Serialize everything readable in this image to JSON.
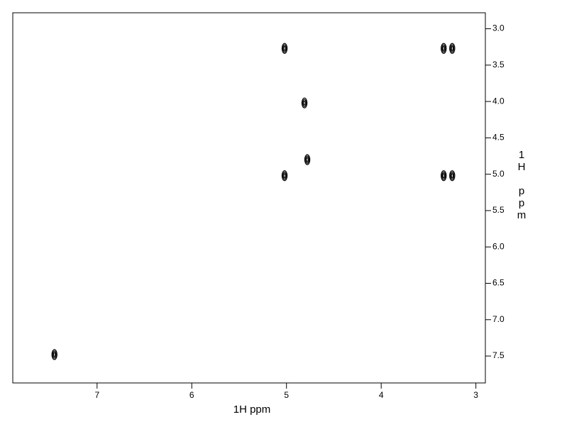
{
  "chart_data": {
    "type": "scatter",
    "x_label": "1H ppm",
    "y_label": "1H ppm",
    "xlim": [
      7.89,
      2.9
    ],
    "ylim": [
      2.78,
      7.87
    ],
    "xticks": [
      7,
      6,
      5,
      4,
      3
    ],
    "yticks": [
      {
        "value": 3,
        "label": "3.0"
      },
      {
        "value": 3.5,
        "label": "3.5"
      },
      {
        "value": 4,
        "label": "4.0"
      },
      {
        "value": 4.5,
        "label": "4.5"
      },
      {
        "value": 5,
        "label": "5.0"
      },
      {
        "value": 5.5,
        "label": "5.5"
      },
      {
        "value": 6,
        "label": "6.0"
      },
      {
        "value": 6.5,
        "label": "6.5"
      },
      {
        "value": 7,
        "label": "7.0"
      },
      {
        "value": 7.5,
        "label": "7.5"
      }
    ],
    "series": [
      {
        "color": "#000000",
        "x": [
          7.45,
          5.02,
          5.02,
          4.78,
          4.81,
          3.34,
          3.25,
          3.34,
          3.25
        ],
        "values": [
          7.48,
          3.27,
          5.02,
          4.8,
          4.02,
          3.27,
          3.27,
          5.02,
          5.02
        ]
      }
    ]
  }
}
